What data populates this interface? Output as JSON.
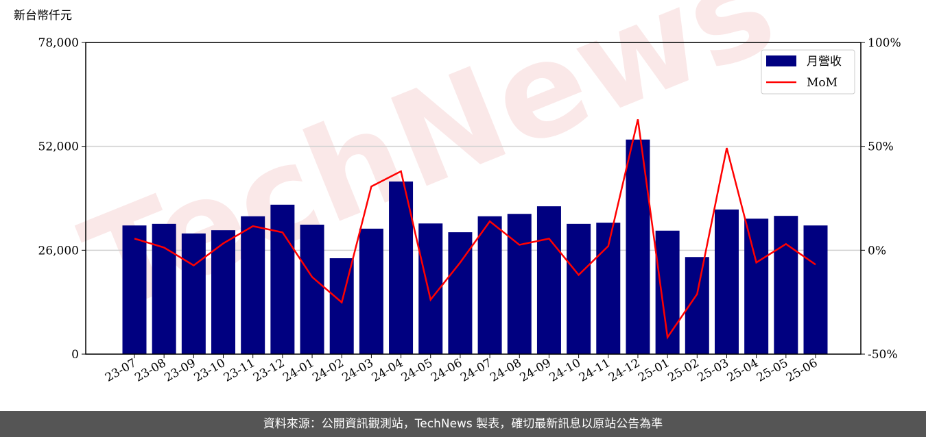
{
  "chart_data": {
    "type": "bar-line",
    "y_axis_label": "新台幣仟元",
    "watermark": "TechNews",
    "categories": [
      "23-07",
      "23-08",
      "23-09",
      "23-10",
      "23-11",
      "23-12",
      "24-01",
      "24-02",
      "24-03",
      "24-04",
      "24-05",
      "24-06",
      "24-07",
      "24-08",
      "24-09",
      "24-10",
      "24-11",
      "24-12",
      "25-01",
      "25-02",
      "25-03",
      "25-04",
      "25-05",
      "25-06"
    ],
    "series": [
      {
        "name": "月營收",
        "type": "bar",
        "color": "#000080",
        "values": [
          32200,
          32600,
          30200,
          31000,
          34500,
          37400,
          32400,
          24000,
          31400,
          43200,
          32700,
          30500,
          34500,
          35100,
          37000,
          32600,
          32900,
          53700,
          30900,
          24300,
          36200,
          33900,
          34600,
          32200
        ]
      },
      {
        "name": "MoM",
        "type": "line",
        "color": "#ff0000",
        "axis": "y2",
        "values": [
          5.6,
          1.3,
          -7.3,
          3.3,
          11.6,
          8.6,
          -12.9,
          -25.1,
          30.7,
          38.0,
          -23.8,
          -5.9,
          13.9,
          2.6,
          5.6,
          -11.9,
          2.0,
          63.0,
          -41.9,
          -21.1,
          49.2,
          -5.9,
          3.0,
          -6.9
        ]
      }
    ],
    "ylim": [
      0,
      78000
    ],
    "yticks": [
      0,
      {
        "value": 26000,
        "label": "26,000"
      },
      {
        "value": 52000,
        "label": "52,000"
      },
      {
        "value": 78000,
        "label": "78,000"
      }
    ],
    "y2lim": [
      -50,
      100
    ],
    "y2ticks": [
      {
        "value": -50,
        "label": "-50%"
      },
      {
        "value": 0,
        "label": "0%"
      },
      {
        "value": 50,
        "label": "50%"
      },
      {
        "value": 100,
        "label": "100%"
      }
    ],
    "grid": true,
    "legend": "upper right"
  },
  "footer": "資料來源：公開資訊觀測站，TechNews 製表，確切最新訊息以原站公告為準"
}
